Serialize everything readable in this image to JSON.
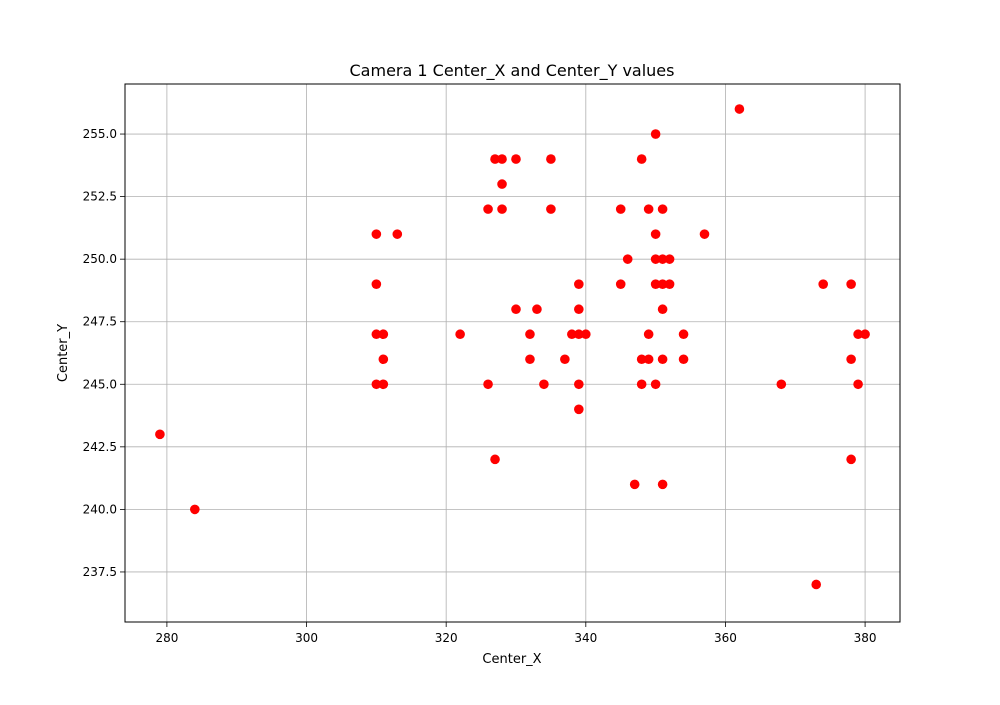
{
  "chart_data": {
    "type": "scatter",
    "title": "Camera 1 Center_X and Center_Y values",
    "xlabel": "Center_X",
    "ylabel": "Center_Y",
    "xlim": [
      274,
      385
    ],
    "ylim": [
      235.5,
      257
    ],
    "x_ticks": [
      280,
      300,
      320,
      340,
      360,
      380
    ],
    "x_tick_labels": [
      "280",
      "300",
      "320",
      "340",
      "360",
      "380"
    ],
    "y_ticks": [
      237.5,
      240.0,
      242.5,
      245.0,
      247.5,
      250.0,
      252.5,
      255.0
    ],
    "y_tick_labels": [
      "237.5",
      "240.0",
      "242.5",
      "245.0",
      "247.5",
      "250.0",
      "252.5",
      "255.0"
    ],
    "grid": true,
    "marker_color": "#ff0000",
    "points": [
      {
        "x": 279,
        "y": 243
      },
      {
        "x": 284,
        "y": 240
      },
      {
        "x": 310,
        "y": 251
      },
      {
        "x": 310,
        "y": 249
      },
      {
        "x": 310,
        "y": 247
      },
      {
        "x": 310,
        "y": 245
      },
      {
        "x": 311,
        "y": 247
      },
      {
        "x": 311,
        "y": 246
      },
      {
        "x": 311,
        "y": 245
      },
      {
        "x": 313,
        "y": 251
      },
      {
        "x": 322,
        "y": 247
      },
      {
        "x": 326,
        "y": 252
      },
      {
        "x": 326,
        "y": 245
      },
      {
        "x": 327,
        "y": 254
      },
      {
        "x": 327,
        "y": 242
      },
      {
        "x": 328,
        "y": 254
      },
      {
        "x": 328,
        "y": 253
      },
      {
        "x": 328,
        "y": 252
      },
      {
        "x": 330,
        "y": 254
      },
      {
        "x": 330,
        "y": 248
      },
      {
        "x": 332,
        "y": 247
      },
      {
        "x": 332,
        "y": 246
      },
      {
        "x": 333,
        "y": 248
      },
      {
        "x": 334,
        "y": 245
      },
      {
        "x": 335,
        "y": 254
      },
      {
        "x": 335,
        "y": 252
      },
      {
        "x": 337,
        "y": 246
      },
      {
        "x": 338,
        "y": 247
      },
      {
        "x": 339,
        "y": 249
      },
      {
        "x": 339,
        "y": 248
      },
      {
        "x": 339,
        "y": 247
      },
      {
        "x": 339,
        "y": 245
      },
      {
        "x": 339,
        "y": 244
      },
      {
        "x": 340,
        "y": 247
      },
      {
        "x": 345,
        "y": 252
      },
      {
        "x": 345,
        "y": 249
      },
      {
        "x": 346,
        "y": 250
      },
      {
        "x": 347,
        "y": 241
      },
      {
        "x": 348,
        "y": 254
      },
      {
        "x": 348,
        "y": 246
      },
      {
        "x": 348,
        "y": 245
      },
      {
        "x": 349,
        "y": 252
      },
      {
        "x": 349,
        "y": 247
      },
      {
        "x": 349,
        "y": 246
      },
      {
        "x": 350,
        "y": 255
      },
      {
        "x": 350,
        "y": 251
      },
      {
        "x": 350,
        "y": 250
      },
      {
        "x": 350,
        "y": 249
      },
      {
        "x": 350,
        "y": 245
      },
      {
        "x": 351,
        "y": 252
      },
      {
        "x": 351,
        "y": 250
      },
      {
        "x": 351,
        "y": 249
      },
      {
        "x": 351,
        "y": 248
      },
      {
        "x": 351,
        "y": 246
      },
      {
        "x": 351,
        "y": 241
      },
      {
        "x": 352,
        "y": 250
      },
      {
        "x": 352,
        "y": 249
      },
      {
        "x": 354,
        "y": 247
      },
      {
        "x": 354,
        "y": 246
      },
      {
        "x": 357,
        "y": 251
      },
      {
        "x": 362,
        "y": 256
      },
      {
        "x": 368,
        "y": 245
      },
      {
        "x": 373,
        "y": 237
      },
      {
        "x": 374,
        "y": 249
      },
      {
        "x": 378,
        "y": 249
      },
      {
        "x": 378,
        "y": 246
      },
      {
        "x": 378,
        "y": 242
      },
      {
        "x": 379,
        "y": 247
      },
      {
        "x": 379,
        "y": 245
      },
      {
        "x": 380,
        "y": 247
      }
    ]
  }
}
